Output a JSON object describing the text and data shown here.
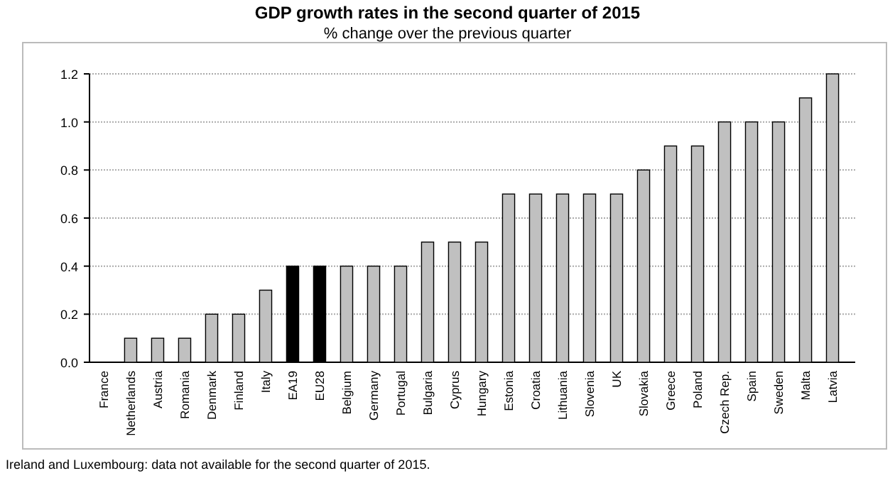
{
  "chart_data": {
    "type": "bar",
    "title": "GDP growth rates in the second quarter of 2015",
    "subtitle": "% change over the previous quarter",
    "categories": [
      "France",
      "Netherlands",
      "Austria",
      "Romania",
      "Denmark",
      "Finland",
      "Italy",
      "EA19",
      "EU28",
      "Belgium",
      "Germany",
      "Portugal",
      "Bulgaria",
      "Cyprus",
      "Hungary",
      "Estonia",
      "Croatia",
      "Lithuania",
      "Slovenia",
      "UK",
      "Slovakia",
      "Greece",
      "Poland",
      "Czech Rep.",
      "Spain",
      "Sweden",
      "Malta",
      "Latvia"
    ],
    "values": [
      0.0,
      0.1,
      0.1,
      0.1,
      0.2,
      0.2,
      0.3,
      0.4,
      0.4,
      0.4,
      0.4,
      0.4,
      0.5,
      0.5,
      0.5,
      0.7,
      0.7,
      0.7,
      0.7,
      0.7,
      0.8,
      0.9,
      0.9,
      1.0,
      1.0,
      1.0,
      1.1,
      1.2
    ],
    "colors": [
      "#c0c0c0",
      "#c0c0c0",
      "#c0c0c0",
      "#c0c0c0",
      "#c0c0c0",
      "#c0c0c0",
      "#c0c0c0",
      "#000000",
      "#000000",
      "#c0c0c0",
      "#c0c0c0",
      "#c0c0c0",
      "#c0c0c0",
      "#c0c0c0",
      "#c0c0c0",
      "#c0c0c0",
      "#c0c0c0",
      "#c0c0c0",
      "#c0c0c0",
      "#c0c0c0",
      "#c0c0c0",
      "#c0c0c0",
      "#c0c0c0",
      "#c0c0c0",
      "#c0c0c0",
      "#c0c0c0",
      "#c0c0c0",
      "#c0c0c0"
    ],
    "ylim": [
      0,
      1.2
    ],
    "yticks": [
      {
        "value": 0,
        "label": "0.0"
      },
      0.2,
      0.4,
      0.6,
      0.8,
      {
        "value": 1,
        "label": "1.0"
      },
      1.2
    ],
    "grid": "y",
    "annotations": [
      "Ireland and Luxembourg: data not available for the second quarter of 2015."
    ]
  }
}
